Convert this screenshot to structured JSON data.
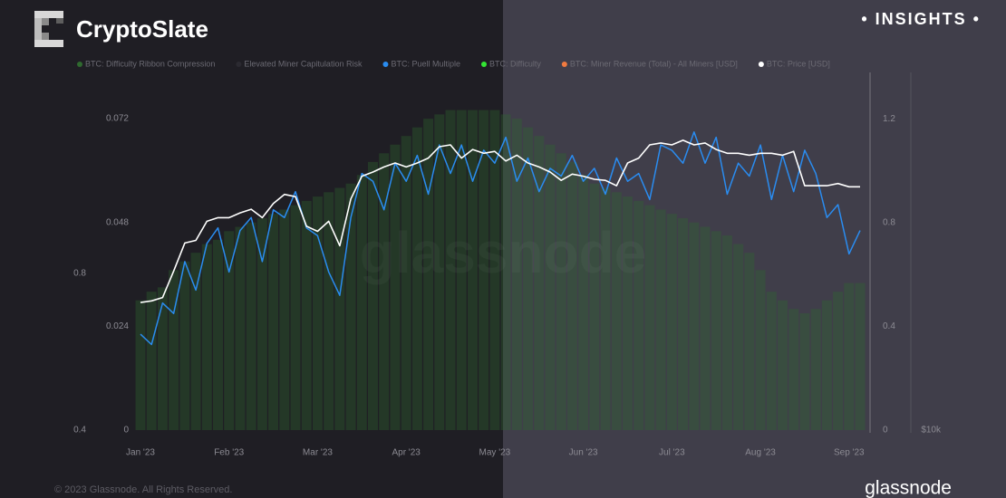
{
  "header": {
    "brand": "CryptoSlate",
    "tag": "• INSIGHTS •"
  },
  "watermark": "glassnode",
  "footer": {
    "copyright": "© 2023 Glassnode. All Rights Reserved.",
    "logo": "glassnode"
  },
  "chart_data": {
    "type": "line",
    "categories": [
      "Jan '23",
      null,
      null,
      null,
      null,
      null,
      null,
      null,
      "Feb '23",
      null,
      null,
      null,
      null,
      null,
      null,
      null,
      "Mar '23",
      null,
      null,
      null,
      null,
      null,
      null,
      null,
      "Apr '23",
      null,
      null,
      null,
      null,
      null,
      null,
      null,
      "May '23",
      null,
      null,
      null,
      null,
      null,
      null,
      null,
      "Jun '23",
      null,
      null,
      null,
      null,
      null,
      null,
      null,
      "Jul '23",
      null,
      null,
      null,
      null,
      null,
      null,
      null,
      "Aug '23",
      null,
      null,
      null,
      null,
      null,
      null,
      null,
      "Sep '23",
      null
    ],
    "series": [
      {
        "name": "BTC: Difficulty Ribbon Compression",
        "color": "#2f6a2f",
        "kind": "bar",
        "axis": "y2",
        "values": [
          0.03,
          0.032,
          0.033,
          0.037,
          0.039,
          0.041,
          0.043,
          0.044,
          0.046,
          0.047,
          0.048,
          0.049,
          0.05,
          0.051,
          0.052,
          0.053,
          0.054,
          0.055,
          0.056,
          0.057,
          0.059,
          0.062,
          0.064,
          0.066,
          0.068,
          0.07,
          0.072,
          0.073,
          0.074,
          0.074,
          0.074,
          0.074,
          0.074,
          0.073,
          0.072,
          0.07,
          0.068,
          0.066,
          0.064,
          0.062,
          0.059,
          0.057,
          0.056,
          0.055,
          0.054,
          0.053,
          0.052,
          0.051,
          0.05,
          0.049,
          0.048,
          0.047,
          0.046,
          0.045,
          0.043,
          0.041,
          0.037,
          0.032,
          0.03,
          0.028,
          0.027,
          0.028,
          0.03,
          0.032,
          0.034,
          0.034
        ]
      },
      {
        "name": "Elevated Miner Capitulation Risk",
        "color": "#2b2a31"
      },
      {
        "name": "BTC: Puell Multiple",
        "color": "#2a8cf0",
        "kind": "line",
        "axis": "y",
        "values": [
          0.37,
          0.33,
          0.49,
          0.45,
          0.65,
          0.54,
          0.72,
          0.78,
          0.61,
          0.77,
          0.82,
          0.65,
          0.85,
          0.82,
          0.92,
          0.78,
          0.75,
          0.61,
          0.52,
          0.82,
          0.99,
          0.96,
          0.85,
          1.03,
          0.96,
          1.06,
          0.91,
          1.1,
          0.99,
          1.1,
          0.96,
          1.08,
          1.03,
          1.13,
          0.96,
          1.05,
          0.92,
          1.01,
          0.98,
          1.06,
          0.96,
          1.01,
          0.91,
          1.05,
          0.96,
          0.99,
          0.89,
          1.1,
          1.08,
          1.03,
          1.15,
          1.03,
          1.13,
          0.91,
          1.03,
          0.98,
          1.1,
          0.89,
          1.06,
          0.92,
          1.08,
          0.99,
          0.82,
          0.87,
          0.68,
          0.77
        ]
      },
      {
        "name": "BTC: Difficulty",
        "color": "#33e633"
      },
      {
        "name": "BTC: Miner Revenue (Total) - All Miners [USD]",
        "color": "#f07a40"
      },
      {
        "name": "BTC: Price [USD]",
        "color": "#ffffff",
        "kind": "line",
        "axis": "price",
        "values": [
          16100,
          16200,
          16400,
          18100,
          20100,
          20300,
          21800,
          22100,
          22100,
          22500,
          22800,
          22100,
          23300,
          24100,
          23900,
          21400,
          21000,
          21800,
          19900,
          23700,
          25800,
          26200,
          26700,
          27100,
          26700,
          27100,
          27600,
          28800,
          29000,
          27600,
          28500,
          28100,
          28300,
          27300,
          27900,
          27100,
          26700,
          26200,
          25400,
          26000,
          25800,
          25500,
          25400,
          24900,
          27100,
          27600,
          29000,
          29200,
          29000,
          29500,
          29000,
          29200,
          28500,
          28100,
          28100,
          27900,
          28100,
          28100,
          27900,
          28300,
          24900,
          24900,
          24900,
          25100,
          24800,
          24800
        ]
      }
    ],
    "ylim": [
      0,
      1.38
    ],
    "yticks": [
      0,
      0.4,
      0.8,
      1.2
    ],
    "y2lim": [
      0,
      0.0827
    ],
    "y2ticks": [
      0,
      0.024,
      0.048,
      0.072
    ],
    "y3lim": [
      0.4,
      1.313
    ],
    "y3ticks": [
      0.4,
      0.8
    ],
    "price_lim": [
      10000,
      38000
    ],
    "price_log": true,
    "price_ticks": [
      {
        "value": 10000,
        "label": "$10k"
      }
    ]
  }
}
